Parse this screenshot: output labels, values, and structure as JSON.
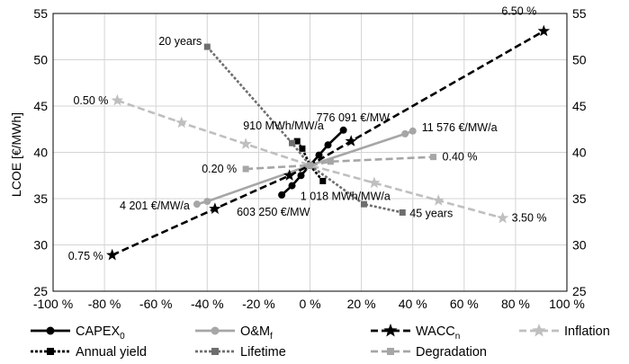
{
  "chart_data": {
    "type": "line",
    "title": "",
    "xlabel": "",
    "ylabel": "LCOE [€/MWh]",
    "xlim": [
      -100,
      100
    ],
    "ylim": [
      25,
      55
    ],
    "xticks": [
      -100,
      -80,
      -60,
      -40,
      -20,
      0,
      20,
      40,
      60,
      80,
      100
    ],
    "xtick_labels": [
      "-100 %",
      "-80 %",
      "-60 %",
      "-40 %",
      "-20 %",
      "0 %",
      "20 %",
      "40 %",
      "60 %",
      "80 %",
      "100 %"
    ],
    "yticks": [
      25,
      30,
      35,
      40,
      45,
      50,
      55
    ],
    "ytick_labels": [
      "25",
      "30",
      "35",
      "40",
      "45",
      "50",
      "55"
    ],
    "grid": true,
    "legend_position": "bottom",
    "series": [
      {
        "name": "CAPEX₀",
        "color": "#000000",
        "marker": "circle",
        "dash": "solid",
        "x": [
          -11,
          -7,
          -3.5,
          0,
          3.5,
          7,
          13
        ],
        "y": [
          35.4,
          36.4,
          37.5,
          38.6,
          39.7,
          40.8,
          42.4
        ]
      },
      {
        "name": "O&Mf",
        "color": "#a6a6a6",
        "marker": "circle",
        "dash": "solid",
        "x": [
          -44,
          -40,
          0,
          37,
          40
        ],
        "y": [
          34.4,
          34.7,
          38.6,
          42,
          42.3
        ]
      },
      {
        "name": "WACCn",
        "color": "#000000",
        "marker": "star",
        "dash": "dashed",
        "x": [
          -77,
          -37,
          -8,
          0,
          16,
          91
        ],
        "y": [
          28.9,
          33.9,
          37.5,
          38.6,
          41.2,
          53.1
        ]
      },
      {
        "name": "Inflation",
        "color": "#bfbfbf",
        "marker": "star",
        "dash": "dashed",
        "x": [
          -75,
          -50,
          -25,
          0,
          25,
          50,
          75
        ],
        "y": [
          45.6,
          43.2,
          40.9,
          38.6,
          36.7,
          34.8,
          32.9
        ]
      },
      {
        "name": "Annual yield",
        "color": "#000000",
        "marker": "square",
        "dash": "dotted",
        "x": [
          -5,
          -3,
          0,
          5
        ],
        "y": [
          41.2,
          40.4,
          38.6,
          36.9
        ]
      },
      {
        "name": "Lifetime",
        "color": "#6e6e6e",
        "marker": "square",
        "dash": "dotted",
        "x": [
          -40,
          -7,
          0,
          21,
          36
        ],
        "y": [
          51.4,
          41.0,
          38.6,
          34.4,
          33.5
        ]
      },
      {
        "name": "Degradation",
        "color": "#a6a6a6",
        "marker": "square",
        "dash": "dashed",
        "x": [
          -25,
          0,
          8,
          48
        ],
        "y": [
          38.2,
          38.6,
          39.0,
          39.5
        ]
      }
    ],
    "annotations": [
      {
        "text": "6.50 %",
        "x": 91,
        "y": 53.1
      },
      {
        "text": "20 years",
        "x": -40,
        "y": 51.4
      },
      {
        "text": "0.50 %",
        "x": -75,
        "y": 45.6
      },
      {
        "text": "776 091 €/MW",
        "x": 13,
        "y": 42.4
      },
      {
        "text": "910 MWh/MW/a",
        "x": -5,
        "y": 41.2
      },
      {
        "text": "11 576 €/MW/a",
        "x": 40,
        "y": 42.3
      },
      {
        "text": "0.20 %",
        "x": -25,
        "y": 38.2
      },
      {
        "text": "0.40 %",
        "x": 48,
        "y": 39.5
      },
      {
        "text": "1 018 MWh/MW/a",
        "x": 5,
        "y": 36.9
      },
      {
        "text": "4 201 €/MW/a",
        "x": -44,
        "y": 34.4
      },
      {
        "text": "603 250 €/MW",
        "x": -11,
        "y": 35.4
      },
      {
        "text": "45 years",
        "x": 36,
        "y": 33.5
      },
      {
        "text": "3.50 %",
        "x": 75,
        "y": 32.9
      },
      {
        "text": "0.75 %",
        "x": -77,
        "y": 28.9
      }
    ]
  }
}
